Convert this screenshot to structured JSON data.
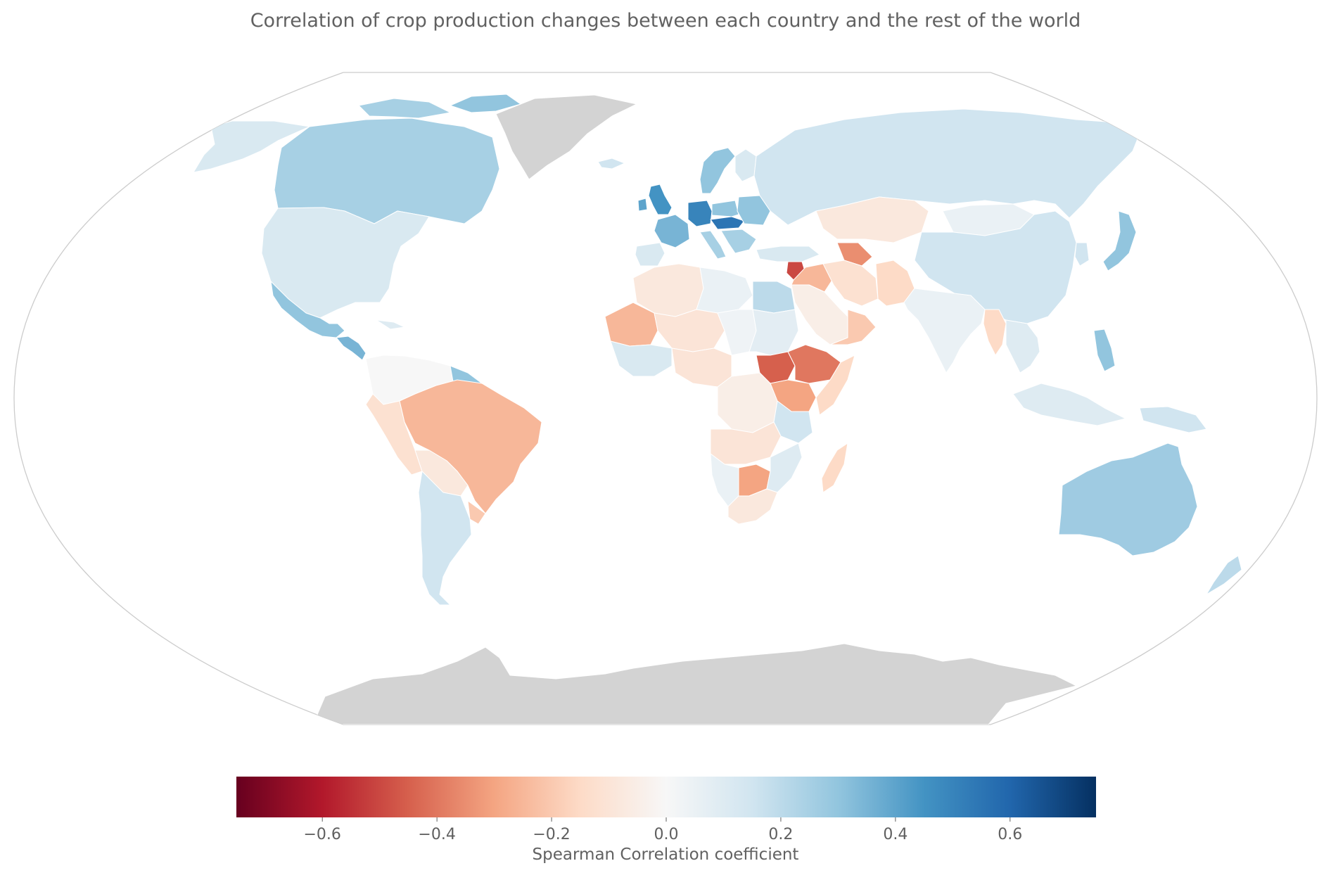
{
  "chart_data": {
    "type": "choropleth",
    "title": "Correlation of crop production changes between each country and the rest of the world",
    "projection": "Winkel Tripel (world)",
    "colormap": "RdBu",
    "value_range": [
      -0.75,
      0.75
    ],
    "no_data_color": "#d3d3d3",
    "no_data_regions": [
      "Greenland",
      "Antarctica"
    ],
    "colorbar": {
      "label": "Spearman Correlation coefficient",
      "ticks": [
        -0.6,
        -0.4,
        -0.2,
        0.0,
        0.2,
        0.4,
        0.6
      ],
      "tick_labels": [
        "−0.6",
        "−0.4",
        "−0.2",
        "0.0",
        "0.2",
        "0.4",
        "0.6"
      ],
      "stops": [
        "#67001f",
        "#b2182b",
        "#d6604d",
        "#f4a582",
        "#fddbc7",
        "#f7f7f7",
        "#d1e5f0",
        "#92c5de",
        "#4393c3",
        "#2166ac",
        "#053061"
      ]
    },
    "regions": [
      {
        "name": "Canada",
        "value": 0.25
      },
      {
        "name": "Alaska (USA)",
        "value": 0.12
      },
      {
        "name": "United States",
        "value": 0.12
      },
      {
        "name": "Mexico",
        "value": 0.3
      },
      {
        "name": "Central America",
        "value": 0.35
      },
      {
        "name": "Colombia/Venezuela",
        "value": 0.0
      },
      {
        "name": "Guianas",
        "value": 0.3
      },
      {
        "name": "Brazil",
        "value": -0.25
      },
      {
        "name": "Peru",
        "value": -0.12
      },
      {
        "name": "Bolivia/Paraguay",
        "value": -0.08
      },
      {
        "name": "Argentina/Chile",
        "value": 0.15
      },
      {
        "name": "Uruguay",
        "value": -0.2
      },
      {
        "name": "Iceland",
        "value": 0.15
      },
      {
        "name": "United Kingdom",
        "value": 0.45
      },
      {
        "name": "Ireland",
        "value": 0.4
      },
      {
        "name": "Scandinavia",
        "value": 0.3
      },
      {
        "name": "Finland",
        "value": 0.12
      },
      {
        "name": "France",
        "value": 0.35
      },
      {
        "name": "Germany",
        "value": 0.5
      },
      {
        "name": "Austria/Czechia/Slovakia/Hungary",
        "value": 0.55
      },
      {
        "name": "Poland",
        "value": 0.3
      },
      {
        "name": "Baltics/Belarus/Ukraine",
        "value": 0.3
      },
      {
        "name": "Iberia",
        "value": 0.12
      },
      {
        "name": "Italy",
        "value": 0.25
      },
      {
        "name": "Balkans",
        "value": 0.25
      },
      {
        "name": "Turkey",
        "value": 0.12
      },
      {
        "name": "Russia",
        "value": 0.15
      },
      {
        "name": "Kazakhstan",
        "value": -0.08
      },
      {
        "name": "Mongolia",
        "value": 0.05
      },
      {
        "name": "China",
        "value": 0.15
      },
      {
        "name": "Korea",
        "value": 0.15
      },
      {
        "name": "Japan",
        "value": 0.3
      },
      {
        "name": "Syria",
        "value": -0.5
      },
      {
        "name": "Iraq/Jordan",
        "value": -0.25
      },
      {
        "name": "Iran",
        "value": -0.12
      },
      {
        "name": "Afghanistan/Pakistan",
        "value": -0.15
      },
      {
        "name": "Caucasus",
        "value": -0.35
      },
      {
        "name": "Saudi Arabia",
        "value": -0.05
      },
      {
        "name": "Yemen/Oman",
        "value": -0.2
      },
      {
        "name": "India",
        "value": 0.05
      },
      {
        "name": "Myanmar",
        "value": -0.15
      },
      {
        "name": "Southeast Asia",
        "value": 0.1
      },
      {
        "name": "Philippines",
        "value": 0.3
      },
      {
        "name": "Indonesia",
        "value": 0.1
      },
      {
        "name": "Papua New Guinea",
        "value": 0.15
      },
      {
        "name": "Australia",
        "value": 0.27
      },
      {
        "name": "New Zealand",
        "value": 0.2
      },
      {
        "name": "Morocco/Algeria",
        "value": -0.08
      },
      {
        "name": "Libya",
        "value": 0.05
      },
      {
        "name": "Egypt",
        "value": 0.2
      },
      {
        "name": "Mauritania/Mali West",
        "value": -0.25
      },
      {
        "name": "Mali/Niger",
        "value": -0.1
      },
      {
        "name": "Chad/Sudan",
        "value": 0.03
      },
      {
        "name": "Sudan",
        "value": 0.08
      },
      {
        "name": "West Africa coast",
        "value": 0.12
      },
      {
        "name": "Nigeria/Cameroon",
        "value": -0.1
      },
      {
        "name": "South Sudan",
        "value": -0.45
      },
      {
        "name": "Ethiopia",
        "value": -0.4
      },
      {
        "name": "Somalia",
        "value": -0.15
      },
      {
        "name": "Kenya/Uganda",
        "value": -0.3
      },
      {
        "name": "DR Congo",
        "value": -0.05
      },
      {
        "name": "Tanzania",
        "value": 0.15
      },
      {
        "name": "Angola/Zambia",
        "value": -0.1
      },
      {
        "name": "Namibia",
        "value": 0.05
      },
      {
        "name": "Zimbabwe/Botswana",
        "value": -0.3
      },
      {
        "name": "Mozambique",
        "value": 0.1
      },
      {
        "name": "South Africa",
        "value": -0.08
      },
      {
        "name": "Madagascar",
        "value": -0.15
      }
    ]
  }
}
